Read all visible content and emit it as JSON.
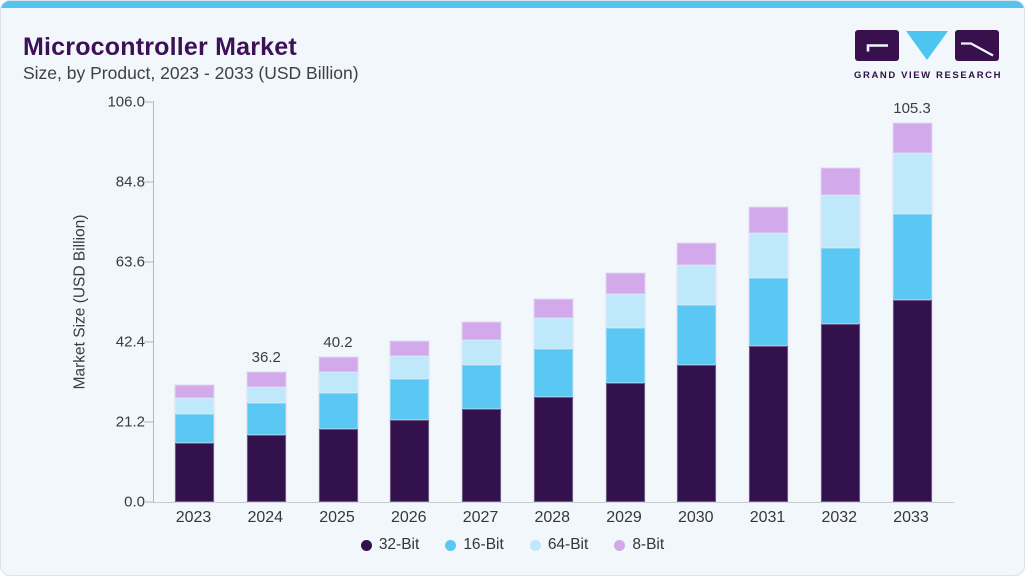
{
  "header": {
    "title": "Microcontroller Market",
    "subtitle": "Size, by Product, 2023 - 2033 (USD Billion)"
  },
  "logo": {
    "brand": "GRAND VIEW RESEARCH",
    "colors": {
      "block": "#39104e",
      "triangle": "#4cc5f0",
      "text": "#2f0f46"
    }
  },
  "chart_data": {
    "type": "bar",
    "stacked": true,
    "title": "Microcontroller Market Size, by Product, 2023 - 2033 (USD Billion)",
    "categories": [
      "2023",
      "2024",
      "2025",
      "2026",
      "2027",
      "2028",
      "2029",
      "2030",
      "2031",
      "2032",
      "2033"
    ],
    "series": [
      {
        "name": "32-Bit",
        "color": "#33114d",
        "values": [
          16.4,
          18.5,
          20.4,
          22.7,
          25.8,
          29.3,
          33.1,
          38.0,
          43.3,
          49.4,
          56.1
        ]
      },
      {
        "name": "16-Bit",
        "color": "#5bc8f3",
        "values": [
          8.1,
          9.1,
          10.0,
          11.4,
          12.3,
          13.3,
          15.3,
          16.8,
          18.8,
          21.3,
          23.9
        ]
      },
      {
        "name": "64-Bit",
        "color": "#bfe8fa",
        "values": [
          4.3,
          4.4,
          5.6,
          6.6,
          6.9,
          8.6,
          9.4,
          11.1,
          12.7,
          14.5,
          17.0
        ]
      },
      {
        "name": "8-Bit",
        "color": "#d2a9ea",
        "values": [
          3.8,
          4.2,
          4.2,
          4.0,
          5.1,
          5.3,
          5.8,
          6.1,
          7.1,
          7.7,
          8.3
        ]
      }
    ],
    "totals": [
      32.6,
      36.2,
      40.2,
      44.7,
      50.1,
      56.5,
      63.6,
      72.0,
      81.9,
      92.9,
      105.3
    ],
    "value_labels": [
      "",
      "36.2",
      "40.2",
      "",
      "",
      "",
      "",
      "",
      "",
      "",
      "105.3"
    ],
    "ylabel": "Market Size (USD Billion)",
    "yticks": [
      "0.0",
      "21.2",
      "42.4",
      "63.6",
      "84.8",
      "106.0"
    ],
    "ylim": [
      0,
      106
    ],
    "grid": false,
    "legend": [
      "32-Bit",
      "16-Bit",
      "64-Bit",
      "8-Bit"
    ],
    "legend_position": "bottom"
  }
}
